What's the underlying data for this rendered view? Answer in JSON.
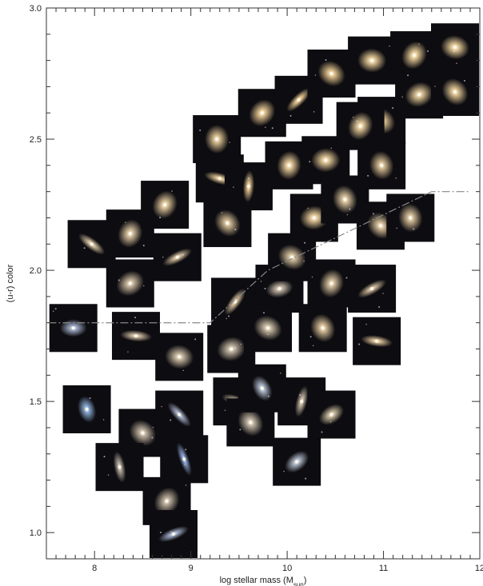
{
  "chart_data": {
    "type": "scatter",
    "title": "",
    "xlabel_main": "log stellar mass (M",
    "xlabel_sub": "sun",
    "xlabel_close": ")",
    "ylabel": "(u-r) color",
    "xlim": [
      7.5,
      12
    ],
    "ylim": [
      0.9,
      3.0
    ],
    "x_ticks": [
      8,
      9,
      10,
      11,
      12
    ],
    "x_tick_labels": [
      "8",
      "9",
      "10",
      "11",
      "12"
    ],
    "y_ticks": [
      1.0,
      1.5,
      2.0,
      2.5,
      3.0
    ],
    "y_tick_labels": [
      "1.0",
      "1.5",
      "2.0",
      "2.5",
      "3.0"
    ],
    "markers": "galaxy image thumbnails",
    "divider_line": {
      "style": "dash-dot",
      "color": "#888888",
      "points": [
        [
          7.52,
          1.8
        ],
        [
          9.2,
          1.8
        ],
        [
          9.8,
          2.0
        ],
        [
          11.5,
          2.3
        ],
        [
          11.9,
          2.3
        ]
      ]
    },
    "points": [
      {
        "x": 7.78,
        "y": 1.78,
        "kind": "spiral",
        "color": "#a6b3d0"
      },
      {
        "x": 7.97,
        "y": 2.1,
        "kind": "edge",
        "color": "#d8c7a6"
      },
      {
        "x": 7.92,
        "y": 1.47,
        "kind": "spiral",
        "color": "#8fb2dc"
      },
      {
        "x": 8.37,
        "y": 2.14,
        "kind": "elliptical",
        "color": "#d9c49f"
      },
      {
        "x": 8.37,
        "y": 1.95,
        "kind": "elliptical",
        "color": "#cdbca0"
      },
      {
        "x": 8.43,
        "y": 1.75,
        "kind": "edge",
        "color": "#d1c0a4"
      },
      {
        "x": 8.5,
        "y": 1.38,
        "kind": "elliptical",
        "color": "#c6b7a3"
      },
      {
        "x": 8.26,
        "y": 1.25,
        "kind": "edge",
        "color": "#bdb3a8"
      },
      {
        "x": 8.73,
        "y": 2.25,
        "kind": "elliptical",
        "color": "#e2c99c"
      },
      {
        "x": 8.86,
        "y": 2.05,
        "kind": "edge",
        "color": "#d5c09e"
      },
      {
        "x": 8.88,
        "y": 1.67,
        "kind": "elliptical",
        "color": "#cfc0a6"
      },
      {
        "x": 8.88,
        "y": 1.45,
        "kind": "edge",
        "color": "#a9b4cc"
      },
      {
        "x": 8.93,
        "y": 1.28,
        "kind": "irregular",
        "color": "#8ea7d8"
      },
      {
        "x": 8.75,
        "y": 1.12,
        "kind": "elliptical",
        "color": "#c2b4a0"
      },
      {
        "x": 8.82,
        "y": 0.99,
        "kind": "edge",
        "color": "#a8b6d3"
      },
      {
        "x": 9.3,
        "y": 2.35,
        "kind": "edge",
        "color": "#e0c694"
      },
      {
        "x": 9.38,
        "y": 2.18,
        "kind": "elliptical",
        "color": "#d3bb94"
      },
      {
        "x": 9.27,
        "y": 2.5,
        "kind": "elliptical",
        "color": "#e0c694"
      },
      {
        "x": 9.46,
        "y": 1.88,
        "kind": "edge",
        "color": "#d9c29d"
      },
      {
        "x": 9.42,
        "y": 1.7,
        "kind": "elliptical",
        "color": "#c8bba6"
      },
      {
        "x": 9.48,
        "y": 1.5,
        "kind": "edge",
        "color": "#cbbfa9"
      },
      {
        "x": 9.62,
        "y": 1.42,
        "kind": "elliptical",
        "color": "#c9bda9"
      },
      {
        "x": 9.6,
        "y": 2.32,
        "kind": "edge",
        "color": "#e4c591"
      },
      {
        "x": 9.74,
        "y": 2.6,
        "kind": "elliptical",
        "color": "#e8c994"
      },
      {
        "x": 9.92,
        "y": 1.93,
        "kind": "spiral",
        "color": "#c9bcaa"
      },
      {
        "x": 9.8,
        "y": 1.78,
        "kind": "elliptical",
        "color": "#cdbfa6"
      },
      {
        "x": 9.74,
        "y": 1.55,
        "kind": "spiral",
        "color": "#b4c0d2"
      },
      {
        "x": 10.02,
        "y": 2.4,
        "kind": "elliptical",
        "color": "#ecd09c"
      },
      {
        "x": 10.12,
        "y": 2.65,
        "kind": "edge",
        "color": "#ecca92"
      },
      {
        "x": 10.28,
        "y": 2.2,
        "kind": "elliptical",
        "color": "#ebcf9d"
      },
      {
        "x": 10.05,
        "y": 2.05,
        "kind": "elliptical",
        "color": "#d7c29f"
      },
      {
        "x": 10.37,
        "y": 1.78,
        "kind": "elliptical",
        "color": "#dcc39a"
      },
      {
        "x": 10.15,
        "y": 1.5,
        "kind": "edge",
        "color": "#cabca6"
      },
      {
        "x": 10.1,
        "y": 1.27,
        "kind": "spiral",
        "color": "#b8c2d2"
      },
      {
        "x": 10.4,
        "y": 2.42,
        "kind": "elliptical",
        "color": "#e9cd9a"
      },
      {
        "x": 10.46,
        "y": 2.75,
        "kind": "elliptical",
        "color": "#e6c78f"
      },
      {
        "x": 10.6,
        "y": 2.27,
        "kind": "elliptical",
        "color": "#dcc59e"
      },
      {
        "x": 10.46,
        "y": 1.95,
        "kind": "elliptical",
        "color": "#d8c39e"
      },
      {
        "x": 10.46,
        "y": 1.45,
        "kind": "spiral",
        "color": "#d2c4a5"
      },
      {
        "x": 10.88,
        "y": 2.8,
        "kind": "elliptical",
        "color": "#ecd19a"
      },
      {
        "x": 10.98,
        "y": 2.57,
        "kind": "elliptical",
        "color": "#e6cb98"
      },
      {
        "x": 10.98,
        "y": 2.4,
        "kind": "elliptical",
        "color": "#d8bf92"
      },
      {
        "x": 10.76,
        "y": 2.55,
        "kind": "elliptical",
        "color": "#e8cd9b"
      },
      {
        "x": 10.88,
        "y": 1.93,
        "kind": "edge",
        "color": "#d0bc9a"
      },
      {
        "x": 10.93,
        "y": 1.73,
        "kind": "edge",
        "color": "#dfc59a"
      },
      {
        "x": 10.97,
        "y": 2.17,
        "kind": "elliptical",
        "color": "#dcc49c"
      },
      {
        "x": 11.28,
        "y": 2.2,
        "kind": "elliptical",
        "color": "#d8c19a"
      },
      {
        "x": 11.32,
        "y": 2.82,
        "kind": "elliptical",
        "color": "#ecd099"
      },
      {
        "x": 11.37,
        "y": 2.67,
        "kind": "elliptical",
        "color": "#e2c998"
      },
      {
        "x": 11.78,
        "y": 2.85,
        "kind": "elliptical",
        "color": "#edd19c"
      },
      {
        "x": 11.8,
        "y": 2.68,
        "kind": "elliptical",
        "color": "#e3c996"
      }
    ]
  }
}
